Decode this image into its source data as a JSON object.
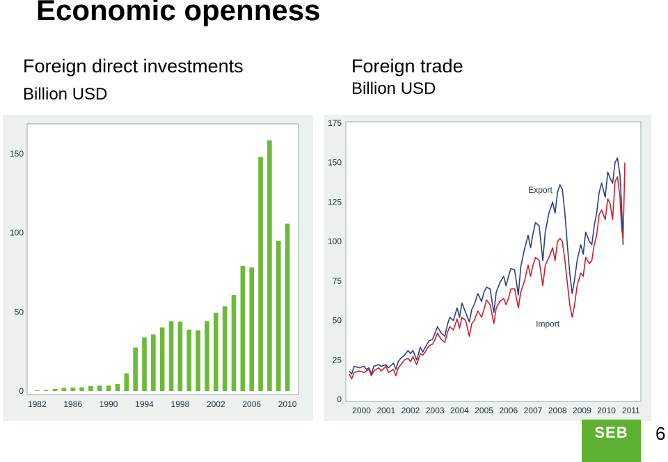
{
  "page": {
    "title": "Economic openness",
    "page_number": "6",
    "logo_text": "SEB",
    "logo_color": "#5eb130"
  },
  "left": {
    "subtitle": "Foreign direct investments",
    "unit": "Billion USD"
  },
  "right": {
    "subtitle": "Foreign trade",
    "unit": "Billion USD"
  },
  "chart_data": [
    {
      "type": "bar",
      "title": "Foreign direct investments",
      "ylabel": "Billion USD",
      "ylim": [
        0,
        160
      ],
      "yticks": [
        0,
        50,
        100,
        150
      ],
      "x": [
        1982,
        1983,
        1984,
        1985,
        1986,
        1987,
        1988,
        1989,
        1990,
        1991,
        1992,
        1993,
        1994,
        1995,
        1996,
        1997,
        1998,
        1999,
        2000,
        2001,
        2002,
        2003,
        2004,
        2005,
        2006,
        2007,
        2008,
        2009,
        2010
      ],
      "xtick_labels": [
        "1982",
        "1986",
        "1990",
        "1994",
        "1998",
        "2002",
        "2006",
        "2010"
      ],
      "values": [
        0.4,
        0.6,
        1.3,
        2.0,
        2.2,
        2.3,
        3.2,
        3.4,
        3.5,
        4.4,
        11.2,
        27.5,
        33.8,
        35.8,
        40.2,
        44.2,
        43.8,
        38.8,
        38.4,
        44.2,
        49.4,
        53.5,
        60.6,
        79.1,
        78.1,
        147.8,
        158.4,
        95.0,
        105.7
      ],
      "color": "#6cba3a",
      "grid": false
    },
    {
      "type": "line",
      "title": "Foreign trade",
      "ylabel": "Billion USD",
      "ylim": [
        0,
        175
      ],
      "yticks": [
        0,
        25,
        50,
        75,
        100,
        125,
        150,
        175
      ],
      "xlim": [
        2000,
        2011.5
      ],
      "xtick_labels": [
        "2000",
        "2001",
        "2002",
        "2003",
        "2004",
        "2005",
        "2006",
        "2007",
        "2008",
        "2009",
        "2010",
        "2011"
      ],
      "annotations": [
        {
          "text": "Export",
          "x": 2007.8,
          "y": 131
        },
        {
          "text": "Import",
          "x": 2008.1,
          "y": 46
        }
      ],
      "series": [
        {
          "name": "Export",
          "color": "#2b3f7e",
          "points": [
            [
              2000.0,
              18
            ],
            [
              2000.1,
              16
            ],
            [
              2000.2,
              21
            ],
            [
              2000.4,
              20
            ],
            [
              2000.6,
              21
            ],
            [
              2000.7,
              19
            ],
            [
              2000.8,
              20
            ],
            [
              2000.9,
              16
            ],
            [
              2001.0,
              21
            ],
            [
              2001.2,
              22
            ],
            [
              2001.3,
              21
            ],
            [
              2001.5,
              22
            ],
            [
              2001.6,
              20
            ],
            [
              2001.8,
              23
            ],
            [
              2001.9,
              19
            ],
            [
              2002.0,
              24
            ],
            [
              2002.1,
              26
            ],
            [
              2002.25,
              28
            ],
            [
              2002.4,
              31
            ],
            [
              2002.5,
              29
            ],
            [
              2002.6,
              31
            ],
            [
              2002.75,
              25
            ],
            [
              2002.9,
              33
            ],
            [
              2003.0,
              30
            ],
            [
              2003.1,
              33
            ],
            [
              2003.25,
              37
            ],
            [
              2003.4,
              38
            ],
            [
              2003.5,
              42
            ],
            [
              2003.6,
              46
            ],
            [
              2003.75,
              42
            ],
            [
              2003.9,
              40
            ],
            [
              2004.0,
              47
            ],
            [
              2004.1,
              52
            ],
            [
              2004.25,
              50
            ],
            [
              2004.4,
              58
            ],
            [
              2004.5,
              52
            ],
            [
              2004.6,
              61
            ],
            [
              2004.75,
              55
            ],
            [
              2004.9,
              49
            ],
            [
              2005.0,
              57
            ],
            [
              2005.1,
              60
            ],
            [
              2005.25,
              67
            ],
            [
              2005.4,
              62
            ],
            [
              2005.5,
              68
            ],
            [
              2005.6,
              71
            ],
            [
              2005.75,
              70
            ],
            [
              2005.9,
              55
            ],
            [
              2006.0,
              68
            ],
            [
              2006.15,
              74
            ],
            [
              2006.3,
              78
            ],
            [
              2006.4,
              72
            ],
            [
              2006.5,
              78
            ],
            [
              2006.6,
              83
            ],
            [
              2006.75,
              82
            ],
            [
              2006.9,
              66
            ],
            [
              2007.0,
              84
            ],
            [
              2007.15,
              95
            ],
            [
              2007.3,
              104
            ],
            [
              2007.4,
              96
            ],
            [
              2007.5,
              105
            ],
            [
              2007.6,
              112
            ],
            [
              2007.75,
              110
            ],
            [
              2007.9,
              88
            ],
            [
              2008.0,
              106
            ],
            [
              2008.15,
              118
            ],
            [
              2008.3,
              125
            ],
            [
              2008.4,
              118
            ],
            [
              2008.5,
              131
            ],
            [
              2008.6,
              136
            ],
            [
              2008.7,
              133
            ],
            [
              2008.8,
              118
            ],
            [
              2008.9,
              98
            ],
            [
              2009.0,
              80
            ],
            [
              2009.1,
              67
            ],
            [
              2009.2,
              76
            ],
            [
              2009.3,
              88
            ],
            [
              2009.45,
              98
            ],
            [
              2009.55,
              92
            ],
            [
              2009.65,
              106
            ],
            [
              2009.8,
              100
            ],
            [
              2009.9,
              98
            ],
            [
              2010.0,
              110
            ],
            [
              2010.1,
              118
            ],
            [
              2010.2,
              131
            ],
            [
              2010.3,
              137
            ],
            [
              2010.45,
              128
            ],
            [
              2010.55,
              144
            ],
            [
              2010.65,
              140
            ],
            [
              2010.75,
              137
            ],
            [
              2010.85,
              150
            ],
            [
              2010.95,
              153
            ],
            [
              2011.05,
              142
            ],
            [
              2011.12,
              122
            ],
            [
              2011.18,
              98
            ]
          ]
        },
        {
          "name": "Import",
          "color": "#cc1f2d",
          "points": [
            [
              2000.0,
              16
            ],
            [
              2000.1,
              13
            ],
            [
              2000.2,
              17
            ],
            [
              2000.4,
              18
            ],
            [
              2000.6,
              17
            ],
            [
              2000.7,
              18
            ],
            [
              2000.8,
              19
            ],
            [
              2000.9,
              15
            ],
            [
              2001.0,
              18
            ],
            [
              2001.2,
              20
            ],
            [
              2001.3,
              18
            ],
            [
              2001.5,
              21
            ],
            [
              2001.6,
              17
            ],
            [
              2001.8,
              19
            ],
            [
              2001.9,
              15
            ],
            [
              2002.0,
              20
            ],
            [
              2002.1,
              22
            ],
            [
              2002.25,
              25
            ],
            [
              2002.4,
              26
            ],
            [
              2002.5,
              24
            ],
            [
              2002.6,
              27
            ],
            [
              2002.75,
              22
            ],
            [
              2002.9,
              29
            ],
            [
              2003.0,
              28
            ],
            [
              2003.1,
              30
            ],
            [
              2003.25,
              34
            ],
            [
              2003.4,
              35
            ],
            [
              2003.5,
              38
            ],
            [
              2003.6,
              42
            ],
            [
              2003.75,
              38
            ],
            [
              2003.9,
              36
            ],
            [
              2004.0,
              42
            ],
            [
              2004.1,
              46
            ],
            [
              2004.25,
              44
            ],
            [
              2004.4,
              51
            ],
            [
              2004.5,
              45
            ],
            [
              2004.6,
              52
            ],
            [
              2004.75,
              50
            ],
            [
              2004.9,
              40
            ],
            [
              2005.0,
              48
            ],
            [
              2005.1,
              50
            ],
            [
              2005.25,
              56
            ],
            [
              2005.4,
              52
            ],
            [
              2005.5,
              57
            ],
            [
              2005.6,
              63
            ],
            [
              2005.75,
              60
            ],
            [
              2005.9,
              48
            ],
            [
              2006.0,
              58
            ],
            [
              2006.15,
              62
            ],
            [
              2006.3,
              64
            ],
            [
              2006.4,
              60
            ],
            [
              2006.5,
              64
            ],
            [
              2006.6,
              70
            ],
            [
              2006.75,
              70
            ],
            [
              2006.9,
              58
            ],
            [
              2007.0,
              68
            ],
            [
              2007.15,
              75
            ],
            [
              2007.3,
              85
            ],
            [
              2007.4,
              78
            ],
            [
              2007.5,
              85
            ],
            [
              2007.6,
              90
            ],
            [
              2007.75,
              88
            ],
            [
              2007.9,
              72
            ],
            [
              2008.0,
              85
            ],
            [
              2008.15,
              90
            ],
            [
              2008.3,
              96
            ],
            [
              2008.4,
              88
            ],
            [
              2008.5,
              100
            ],
            [
              2008.6,
              102
            ],
            [
              2008.7,
              100
            ],
            [
              2008.8,
              88
            ],
            [
              2008.9,
              74
            ],
            [
              2009.0,
              60
            ],
            [
              2009.1,
              52
            ],
            [
              2009.2,
              60
            ],
            [
              2009.3,
              72
            ],
            [
              2009.45,
              80
            ],
            [
              2009.55,
              78
            ],
            [
              2009.65,
              90
            ],
            [
              2009.8,
              86
            ],
            [
              2009.9,
              88
            ],
            [
              2010.0,
              98
            ],
            [
              2010.1,
              104
            ],
            [
              2010.2,
              117
            ],
            [
              2010.3,
              120
            ],
            [
              2010.45,
              114
            ],
            [
              2010.55,
              127
            ],
            [
              2010.65,
              124
            ],
            [
              2010.75,
              114
            ],
            [
              2010.85,
              138
            ],
            [
              2010.95,
              141
            ],
            [
              2011.05,
              128
            ],
            [
              2011.12,
              108
            ],
            [
              2011.18,
              102
            ],
            [
              2011.25,
              150
            ]
          ]
        }
      ],
      "grid": false
    }
  ]
}
